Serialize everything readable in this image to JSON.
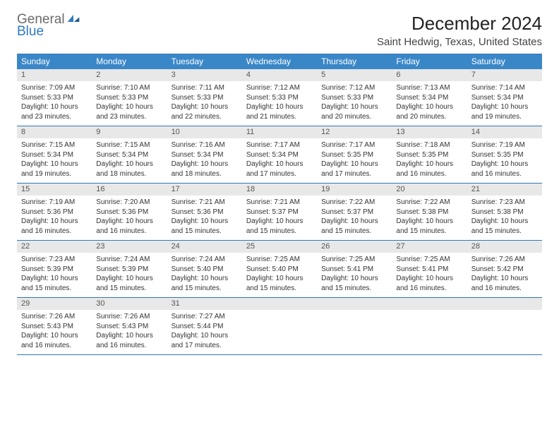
{
  "brand": {
    "word1": "General",
    "word2": "Blue"
  },
  "title": "December 2024",
  "location": "Saint Hedwig, Texas, United States",
  "colors": {
    "header_bg": "#3a87c8",
    "header_text": "#ffffff",
    "daynum_bg": "#e8e8e8",
    "border": "#2f78bd",
    "logo_general": "#6b6b6b",
    "logo_blue": "#2f78bd"
  },
  "weekdays": [
    "Sunday",
    "Monday",
    "Tuesday",
    "Wednesday",
    "Thursday",
    "Friday",
    "Saturday"
  ],
  "weeks": [
    [
      {
        "day": "1",
        "sunrise": "Sunrise: 7:09 AM",
        "sunset": "Sunset: 5:33 PM",
        "daylight": "Daylight: 10 hours and 23 minutes."
      },
      {
        "day": "2",
        "sunrise": "Sunrise: 7:10 AM",
        "sunset": "Sunset: 5:33 PM",
        "daylight": "Daylight: 10 hours and 23 minutes."
      },
      {
        "day": "3",
        "sunrise": "Sunrise: 7:11 AM",
        "sunset": "Sunset: 5:33 PM",
        "daylight": "Daylight: 10 hours and 22 minutes."
      },
      {
        "day": "4",
        "sunrise": "Sunrise: 7:12 AM",
        "sunset": "Sunset: 5:33 PM",
        "daylight": "Daylight: 10 hours and 21 minutes."
      },
      {
        "day": "5",
        "sunrise": "Sunrise: 7:12 AM",
        "sunset": "Sunset: 5:33 PM",
        "daylight": "Daylight: 10 hours and 20 minutes."
      },
      {
        "day": "6",
        "sunrise": "Sunrise: 7:13 AM",
        "sunset": "Sunset: 5:34 PM",
        "daylight": "Daylight: 10 hours and 20 minutes."
      },
      {
        "day": "7",
        "sunrise": "Sunrise: 7:14 AM",
        "sunset": "Sunset: 5:34 PM",
        "daylight": "Daylight: 10 hours and 19 minutes."
      }
    ],
    [
      {
        "day": "8",
        "sunrise": "Sunrise: 7:15 AM",
        "sunset": "Sunset: 5:34 PM",
        "daylight": "Daylight: 10 hours and 19 minutes."
      },
      {
        "day": "9",
        "sunrise": "Sunrise: 7:15 AM",
        "sunset": "Sunset: 5:34 PM",
        "daylight": "Daylight: 10 hours and 18 minutes."
      },
      {
        "day": "10",
        "sunrise": "Sunrise: 7:16 AM",
        "sunset": "Sunset: 5:34 PM",
        "daylight": "Daylight: 10 hours and 18 minutes."
      },
      {
        "day": "11",
        "sunrise": "Sunrise: 7:17 AM",
        "sunset": "Sunset: 5:34 PM",
        "daylight": "Daylight: 10 hours and 17 minutes."
      },
      {
        "day": "12",
        "sunrise": "Sunrise: 7:17 AM",
        "sunset": "Sunset: 5:35 PM",
        "daylight": "Daylight: 10 hours and 17 minutes."
      },
      {
        "day": "13",
        "sunrise": "Sunrise: 7:18 AM",
        "sunset": "Sunset: 5:35 PM",
        "daylight": "Daylight: 10 hours and 16 minutes."
      },
      {
        "day": "14",
        "sunrise": "Sunrise: 7:19 AM",
        "sunset": "Sunset: 5:35 PM",
        "daylight": "Daylight: 10 hours and 16 minutes."
      }
    ],
    [
      {
        "day": "15",
        "sunrise": "Sunrise: 7:19 AM",
        "sunset": "Sunset: 5:36 PM",
        "daylight": "Daylight: 10 hours and 16 minutes."
      },
      {
        "day": "16",
        "sunrise": "Sunrise: 7:20 AM",
        "sunset": "Sunset: 5:36 PM",
        "daylight": "Daylight: 10 hours and 16 minutes."
      },
      {
        "day": "17",
        "sunrise": "Sunrise: 7:21 AM",
        "sunset": "Sunset: 5:36 PM",
        "daylight": "Daylight: 10 hours and 15 minutes."
      },
      {
        "day": "18",
        "sunrise": "Sunrise: 7:21 AM",
        "sunset": "Sunset: 5:37 PM",
        "daylight": "Daylight: 10 hours and 15 minutes."
      },
      {
        "day": "19",
        "sunrise": "Sunrise: 7:22 AM",
        "sunset": "Sunset: 5:37 PM",
        "daylight": "Daylight: 10 hours and 15 minutes."
      },
      {
        "day": "20",
        "sunrise": "Sunrise: 7:22 AM",
        "sunset": "Sunset: 5:38 PM",
        "daylight": "Daylight: 10 hours and 15 minutes."
      },
      {
        "day": "21",
        "sunrise": "Sunrise: 7:23 AM",
        "sunset": "Sunset: 5:38 PM",
        "daylight": "Daylight: 10 hours and 15 minutes."
      }
    ],
    [
      {
        "day": "22",
        "sunrise": "Sunrise: 7:23 AM",
        "sunset": "Sunset: 5:39 PM",
        "daylight": "Daylight: 10 hours and 15 minutes."
      },
      {
        "day": "23",
        "sunrise": "Sunrise: 7:24 AM",
        "sunset": "Sunset: 5:39 PM",
        "daylight": "Daylight: 10 hours and 15 minutes."
      },
      {
        "day": "24",
        "sunrise": "Sunrise: 7:24 AM",
        "sunset": "Sunset: 5:40 PM",
        "daylight": "Daylight: 10 hours and 15 minutes."
      },
      {
        "day": "25",
        "sunrise": "Sunrise: 7:25 AM",
        "sunset": "Sunset: 5:40 PM",
        "daylight": "Daylight: 10 hours and 15 minutes."
      },
      {
        "day": "26",
        "sunrise": "Sunrise: 7:25 AM",
        "sunset": "Sunset: 5:41 PM",
        "daylight": "Daylight: 10 hours and 15 minutes."
      },
      {
        "day": "27",
        "sunrise": "Sunrise: 7:25 AM",
        "sunset": "Sunset: 5:41 PM",
        "daylight": "Daylight: 10 hours and 16 minutes."
      },
      {
        "day": "28",
        "sunrise": "Sunrise: 7:26 AM",
        "sunset": "Sunset: 5:42 PM",
        "daylight": "Daylight: 10 hours and 16 minutes."
      }
    ],
    [
      {
        "day": "29",
        "sunrise": "Sunrise: 7:26 AM",
        "sunset": "Sunset: 5:43 PM",
        "daylight": "Daylight: 10 hours and 16 minutes."
      },
      {
        "day": "30",
        "sunrise": "Sunrise: 7:26 AM",
        "sunset": "Sunset: 5:43 PM",
        "daylight": "Daylight: 10 hours and 16 minutes."
      },
      {
        "day": "31",
        "sunrise": "Sunrise: 7:27 AM",
        "sunset": "Sunset: 5:44 PM",
        "daylight": "Daylight: 10 hours and 17 minutes."
      },
      null,
      null,
      null,
      null
    ]
  ]
}
